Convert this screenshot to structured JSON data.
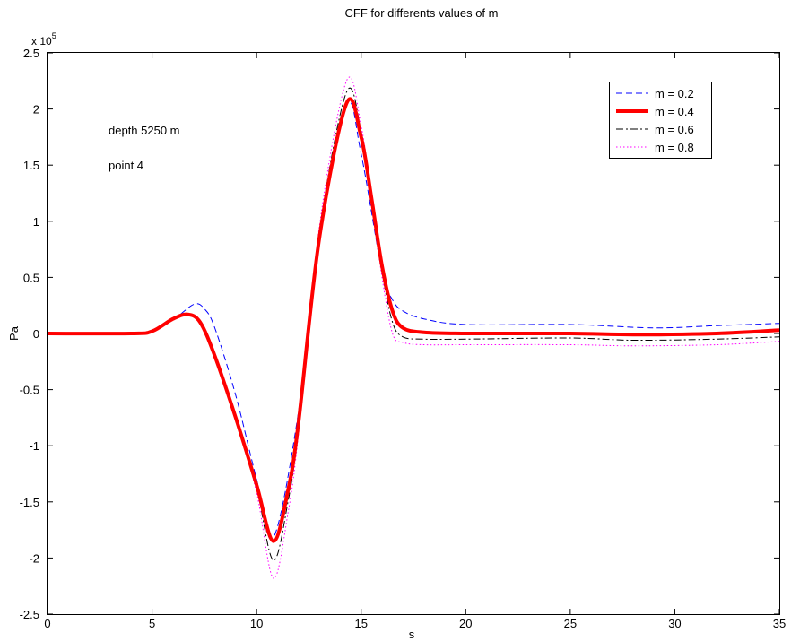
{
  "chart_data": {
    "type": "line",
    "title": "CFF  for differents values of m",
    "xlabel": "s",
    "ylabel": "Pa",
    "y_multiplier_label": {
      "prefix": "x 10",
      "exponent": "5"
    },
    "xlim": [
      0,
      35
    ],
    "ylim": [
      -2.5,
      2.5
    ],
    "x_ticks": [
      0,
      5,
      10,
      15,
      20,
      25,
      30,
      35
    ],
    "x_tick_labels": [
      "0",
      "5",
      "10",
      "15",
      "20",
      "25",
      "30",
      "35"
    ],
    "y_ticks": [
      -2.5,
      -2,
      -1.5,
      -1,
      -0.5,
      0,
      0.5,
      1,
      1.5,
      2,
      2.5
    ],
    "y_tick_labels": [
      "-2.5",
      "-2",
      "-1.5",
      "-1",
      "-0.5",
      "0",
      "0.5",
      "1",
      "1.5",
      "2",
      "2.5"
    ],
    "grid": false,
    "legend_position": "top-right",
    "annotations": [
      "depth  5250 m",
      "point 4"
    ],
    "series": [
      {
        "name": "m = 0.2",
        "color": "#0000ff",
        "style": "dashed",
        "x": [
          0,
          4,
          5,
          6,
          7,
          7.5,
          8,
          9,
          10,
          10.8,
          12,
          13,
          14.3,
          15,
          16,
          16.5,
          17,
          18,
          20,
          25,
          29,
          32,
          35
        ],
        "y": [
          0,
          0,
          0.03,
          0.12,
          0.26,
          0.22,
          0.05,
          -0.55,
          -1.3,
          -1.82,
          -0.7,
          0.9,
          2.04,
          1.6,
          0.55,
          0.3,
          0.2,
          0.13,
          0.08,
          0.08,
          0.05,
          0.07,
          0.09
        ]
      },
      {
        "name": "m = 0.4",
        "color": "#ff0000",
        "style": "solid",
        "x": [
          0,
          4,
          5,
          6,
          6.7,
          7.3,
          8,
          9,
          10,
          10.8,
          11.5,
          12,
          13,
          14.3,
          15,
          15.5,
          16,
          16.5,
          17,
          18,
          20,
          25,
          28,
          32,
          35
        ],
        "y": [
          0,
          0,
          0.02,
          0.13,
          0.17,
          0.1,
          -0.2,
          -0.75,
          -1.35,
          -1.85,
          -1.4,
          -0.8,
          0.85,
          2.05,
          1.75,
          1.2,
          0.6,
          0.2,
          0.05,
          0.01,
          0.0,
          0.0,
          -0.01,
          0.0,
          0.03
        ]
      },
      {
        "name": "m = 0.6",
        "color": "#000000",
        "style": "dashdot",
        "x": [
          0,
          4,
          5,
          6,
          6.7,
          7.3,
          8,
          9,
          10,
          10.8,
          11.5,
          12,
          13,
          14.3,
          15,
          15.5,
          16,
          16.5,
          17,
          18,
          20,
          25,
          28,
          32,
          35
        ],
        "y": [
          0,
          0,
          0.02,
          0.13,
          0.17,
          0.1,
          -0.2,
          -0.75,
          -1.38,
          -2.02,
          -1.5,
          -0.85,
          0.9,
          2.15,
          1.8,
          1.2,
          0.55,
          0.1,
          -0.03,
          -0.05,
          -0.05,
          -0.04,
          -0.06,
          -0.05,
          -0.03
        ]
      },
      {
        "name": "m = 0.8",
        "color": "#ff00ff",
        "style": "dotted",
        "x": [
          0,
          4,
          5,
          6,
          6.7,
          7.3,
          8,
          9,
          10,
          10.8,
          11.5,
          12,
          13,
          14.3,
          15,
          15.5,
          16,
          16.5,
          17,
          18,
          20,
          25,
          28,
          32,
          35
        ],
        "y": [
          0,
          0,
          0.02,
          0.13,
          0.17,
          0.1,
          -0.2,
          -0.75,
          -1.42,
          -2.18,
          -1.6,
          -0.9,
          0.95,
          2.25,
          1.85,
          1.2,
          0.5,
          0.0,
          -0.08,
          -0.1,
          -0.1,
          -0.1,
          -0.11,
          -0.1,
          -0.07
        ]
      }
    ]
  }
}
